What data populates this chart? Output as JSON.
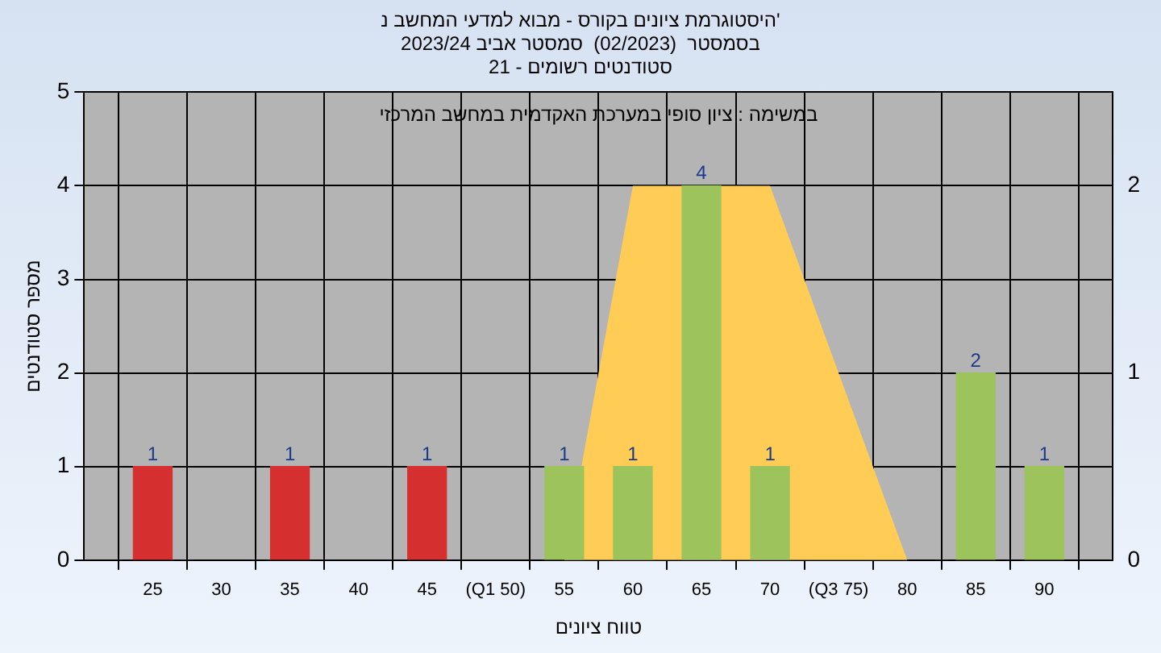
{
  "chart_data": {
    "type": "bar",
    "title": [
      "היסטוגרמת ציונים בקורס - מבוא למדעי המחשב נ'",
      "בסמסטר  (02/2023)  סמסטר אביב 2023/24",
      "סטודנטים רשומים - 21"
    ],
    "xlabel": "טווח ציונים",
    "ylabel": "מספר סטודנטים",
    "annotations": [
      "במשימה : ציון סופי במערכת האקדמית במחשב המרכזי"
    ],
    "series": [
      {
        "type": "area",
        "color": "#ffcc55",
        "x": [
          55,
          60,
          70,
          80
        ],
        "values": [
          0,
          4,
          4,
          0
        ]
      },
      {
        "x": [
          25,
          35,
          45,
          55,
          60,
          65,
          70,
          85,
          90
        ],
        "values": [
          1,
          1,
          1,
          1,
          1,
          4,
          1,
          2,
          1
        ],
        "value_labels": [
          "1",
          "1",
          "1",
          "1",
          "1",
          "4",
          "1",
          "2",
          "1"
        ],
        "colors": [
          "#d62f2f",
          "#d62f2f",
          "#d62f2f",
          "#9cc35c",
          "#9cc35c",
          "#9cc35c",
          "#9cc35c",
          "#9cc35c",
          "#9cc35c"
        ]
      }
    ],
    "xlim": [
      20,
      95
    ],
    "xticks": [
      25,
      30,
      35,
      40,
      45,
      {
        "value": 50,
        "label": "(Q1 50)"
      },
      55,
      60,
      65,
      70,
      {
        "value": 75,
        "label": "(Q3 75)"
      },
      80,
      85,
      90
    ],
    "ylim": [
      0,
      5
    ],
    "yticks": [
      0,
      1,
      2,
      3,
      4,
      5
    ],
    "y2lim": [
      0,
      2.5
    ],
    "y2ticks": [
      0,
      1,
      2
    ],
    "grid": true,
    "legend": false
  }
}
